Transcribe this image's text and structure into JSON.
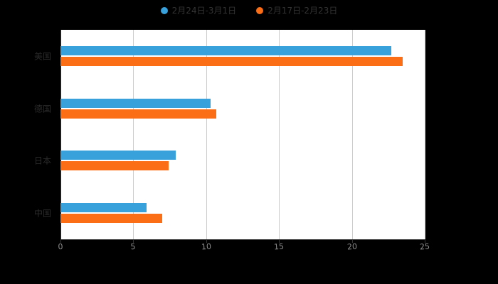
{
  "colors": {
    "page_background": "#000000",
    "plot_background": "#ffffff",
    "series_blue": "#38a0da",
    "series_orange": "#fc6e16",
    "gridline": "#cccccc",
    "axis_line": "#333333",
    "tick_label": "#8c8c8c",
    "category_label": "#2b2b2b",
    "legend_text": "#333333"
  },
  "legend": {
    "items": [
      {
        "label": "2月24日-3月1日",
        "color": "#38a0da"
      },
      {
        "label": "2月17日-2月23日",
        "color": "#fc6e16"
      }
    ]
  },
  "chart_data": {
    "type": "bar",
    "orientation": "horizontal",
    "title": "",
    "xlabel": "",
    "ylabel": "",
    "categories": [
      "美国",
      "德国",
      "日本",
      "中国"
    ],
    "series": [
      {
        "name": "2月24日-3月1日",
        "color": "#38a0da",
        "values": [
          22.7,
          10.3,
          7.9,
          5.9
        ]
      },
      {
        "name": "2月17日-2月23日",
        "color": "#fc6e16",
        "values": [
          23.5,
          10.7,
          7.4,
          7.0
        ]
      }
    ],
    "xlim": [
      0,
      25
    ],
    "x_ticks": [
      0,
      5,
      10,
      15,
      20,
      25
    ],
    "grid": true,
    "legend_position": "top"
  }
}
